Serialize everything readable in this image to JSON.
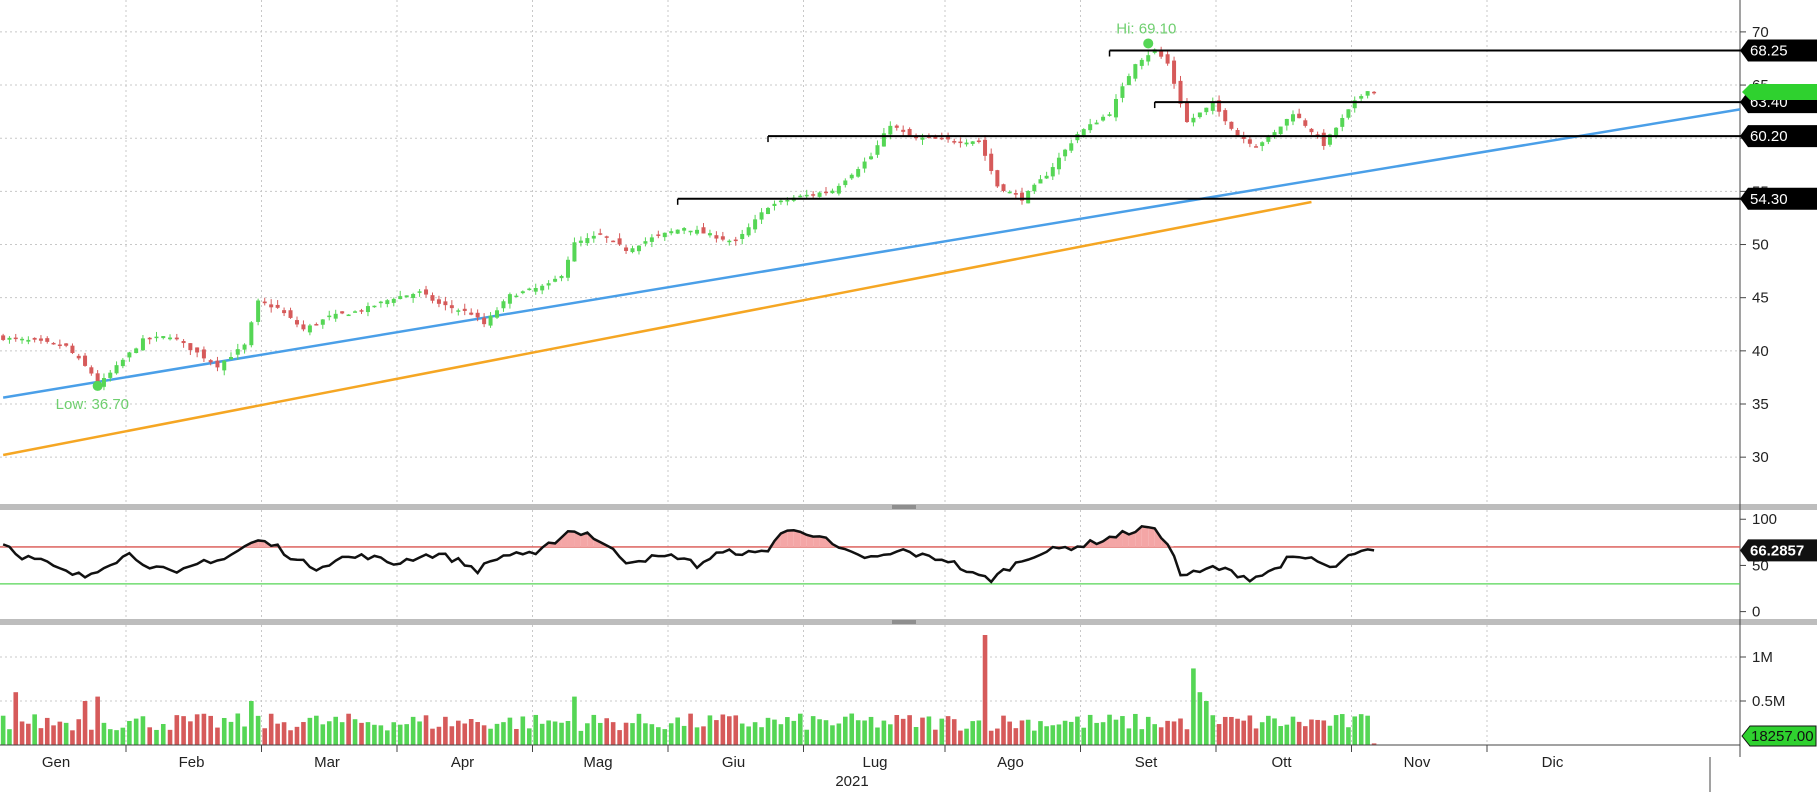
{
  "chart_data": [
    {
      "type": "candlestick",
      "panel": "price",
      "y_ticks": [
        "30",
        "35",
        "40",
        "45",
        "50",
        "55",
        "60",
        "65",
        "70"
      ],
      "ylim": [
        25.5,
        73
      ],
      "grid": true,
      "hi_label": "Hi: 69.10",
      "lo_label": "Low: 36.70",
      "hi": 69.1,
      "low": 36.7,
      "last_price": 64.35,
      "colors": {
        "up": "#55d655",
        "down": "#d65a5a",
        "trend": "#4a9fe8",
        "ma": "#f5a623"
      },
      "levels": [
        {
          "label": "68.25",
          "value": 68.25,
          "start_day": 172
        },
        {
          "label": "63.40",
          "value": 63.4,
          "start_day": 179
        },
        {
          "label": "60.20",
          "value": 60.2,
          "start_day": 118
        },
        {
          "label": "54.30",
          "value": 54.3,
          "start_day": 104
        }
      ],
      "trendline": {
        "from": {
          "day": 0,
          "price": 35.6
        },
        "to": {
          "day": 210,
          "price": 56.6
        }
      },
      "moving_average": {
        "from": {
          "day": 0,
          "price": 30.2
        },
        "to": {
          "day": 204,
          "price": 54.0
        }
      },
      "anchor_closes": [
        [
          0,
          41.2
        ],
        [
          5,
          40.9
        ],
        [
          10,
          40.4
        ],
        [
          14,
          37.9
        ],
        [
          15,
          36.7
        ],
        [
          18,
          38.5
        ],
        [
          22,
          41.0
        ],
        [
          26,
          41.4
        ],
        [
          30,
          39.8
        ],
        [
          33,
          38.6
        ],
        [
          37,
          40.5
        ],
        [
          39,
          44.6
        ],
        [
          42,
          44.0
        ],
        [
          46,
          42.0
        ],
        [
          50,
          43.2
        ],
        [
          55,
          43.8
        ],
        [
          60,
          45.0
        ],
        [
          64,
          45.5
        ],
        [
          67,
          44.4
        ],
        [
          72,
          43.5
        ],
        [
          74,
          42.5
        ],
        [
          78,
          45.2
        ],
        [
          84,
          46.2
        ],
        [
          86,
          47.2
        ],
        [
          88,
          50.1
        ],
        [
          92,
          50.9
        ],
        [
          96,
          49.5
        ],
        [
          100,
          50.6
        ],
        [
          105,
          51.6
        ],
        [
          113,
          50.2
        ],
        [
          118,
          53.6
        ],
        [
          122,
          54.4
        ],
        [
          128,
          55.1
        ],
        [
          134,
          58.3
        ],
        [
          137,
          61.3
        ],
        [
          140,
          60.1
        ],
        [
          148,
          59.7
        ],
        [
          151,
          59.8
        ],
        [
          154,
          55.5
        ],
        [
          158,
          54.3
        ],
        [
          162,
          56.6
        ],
        [
          167,
          60.4
        ],
        [
          172,
          62.4
        ],
        [
          176,
          67.1
        ],
        [
          179,
          68.3
        ],
        [
          181,
          67.0
        ],
        [
          184,
          61.5
        ],
        [
          188,
          63.2
        ],
        [
          192,
          60.3
        ],
        [
          195,
          59.3
        ],
        [
          198,
          60.5
        ],
        [
          201,
          62.4
        ],
        [
          205,
          60.1
        ],
        [
          206,
          59.4
        ],
        [
          208,
          61.0
        ],
        [
          211,
          63.4
        ],
        [
          213,
          64.6
        ],
        [
          214,
          64.35
        ]
      ]
    },
    {
      "type": "line",
      "panel": "indicator",
      "y_ticks": [
        "0",
        "50",
        "100"
      ],
      "ylim": [
        -8,
        110
      ],
      "upper_band": 70,
      "lower_band": 30,
      "last_value": 66.2857,
      "last_label": "66.2857",
      "colors": {
        "line": "#111111",
        "upper": "#d9534f",
        "lower": "#55d655",
        "fill": "#f4a6a6"
      },
      "anchor_values": [
        [
          0,
          75
        ],
        [
          3,
          60
        ],
        [
          6,
          55
        ],
        [
          10,
          42
        ],
        [
          13,
          38
        ],
        [
          16,
          50
        ],
        [
          20,
          62
        ],
        [
          23,
          50
        ],
        [
          27,
          40
        ],
        [
          31,
          55
        ],
        [
          34,
          57
        ],
        [
          37,
          70
        ],
        [
          39,
          77
        ],
        [
          42,
          70
        ],
        [
          45,
          55
        ],
        [
          48,
          48
        ],
        [
          52,
          58
        ],
        [
          56,
          60
        ],
        [
          60,
          52
        ],
        [
          64,
          60
        ],
        [
          67,
          62
        ],
        [
          70,
          55
        ],
        [
          73,
          45
        ],
        [
          76,
          58
        ],
        [
          79,
          64
        ],
        [
          82,
          60
        ],
        [
          84,
          72
        ],
        [
          87,
          87
        ],
        [
          90,
          85
        ],
        [
          92,
          76
        ],
        [
          96,
          55
        ],
        [
          100,
          58
        ],
        [
          104,
          60
        ],
        [
          107,
          50
        ],
        [
          110,
          62
        ],
        [
          113,
          65
        ],
        [
          116,
          62
        ],
        [
          118,
          68
        ],
        [
          120,
          85
        ],
        [
          123,
          88
        ],
        [
          126,
          82
        ],
        [
          129,
          67
        ],
        [
          132,
          60
        ],
        [
          135,
          58
        ],
        [
          139,
          66
        ],
        [
          142,
          60
        ],
        [
          146,
          56
        ],
        [
          150,
          40
        ],
        [
          153,
          35
        ],
        [
          156,
          48
        ],
        [
          160,
          62
        ],
        [
          164,
          68
        ],
        [
          168,
          72
        ],
        [
          172,
          80
        ],
        [
          176,
          88
        ],
        [
          178,
          92
        ],
        [
          181,
          76
        ],
        [
          183,
          40
        ],
        [
          186,
          42
        ],
        [
          188,
          48
        ],
        [
          191,
          43
        ],
        [
          194,
          36
        ],
        [
          197,
          42
        ],
        [
          200,
          56
        ],
        [
          204,
          58
        ],
        [
          207,
          46
        ],
        [
          210,
          58
        ],
        [
          212,
          64
        ],
        [
          214,
          66.29
        ]
      ]
    },
    {
      "type": "bar",
      "panel": "volume",
      "y_ticks": [
        "0.5M",
        "1M"
      ],
      "ylim": [
        0,
        1.25
      ],
      "last_volume": 18257,
      "last_label": "18257.00",
      "spikes": [
        {
          "day": 2,
          "value": 0.6
        },
        {
          "day": 13,
          "value": 0.5
        },
        {
          "day": 15,
          "value": 0.55
        },
        {
          "day": 38,
          "value": 0.5
        },
        {
          "day": 88,
          "value": 0.55
        },
        {
          "day": 152,
          "value": 1.25
        },
        {
          "day": 185,
          "value": 0.87
        },
        {
          "day": 186,
          "value": 0.6
        },
        {
          "day": 187,
          "value": 0.5
        }
      ]
    }
  ],
  "x_axis": {
    "months": [
      "Gen",
      "Feb",
      "Mar",
      "Apr",
      "Mag",
      "Giu",
      "Lug",
      "Ago",
      "Set",
      "Ott",
      "Nov",
      "Dic"
    ],
    "month_start_days": [
      0,
      20,
      40,
      61,
      82,
      103,
      124,
      146,
      168,
      189,
      211,
      232
    ],
    "year_label": "2021"
  }
}
